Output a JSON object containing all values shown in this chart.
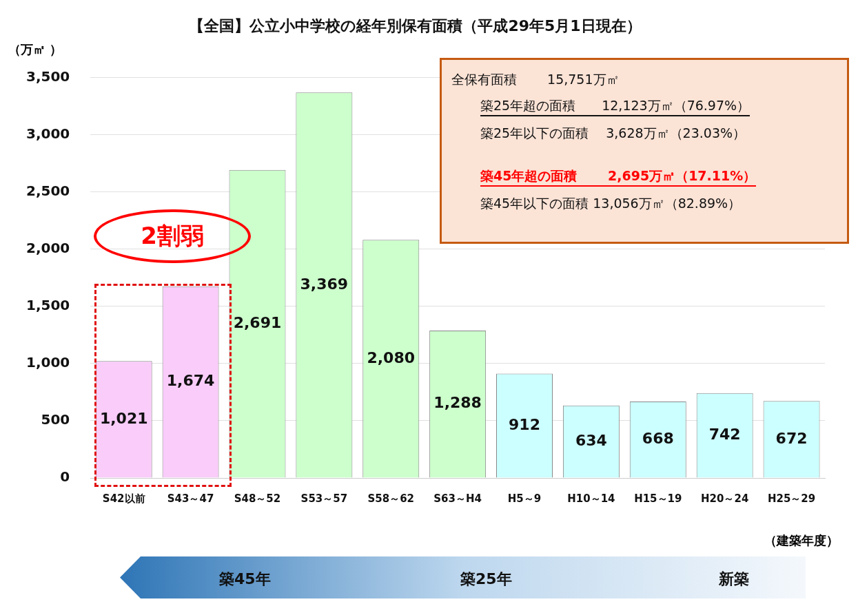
{
  "chart_data": {
    "type": "bar",
    "title": "【全国】公立小中学校の経年別保有面積（平成29年5月1日現在）",
    "ylabel": "（万㎡ ）",
    "xlabel": "（建築年度）",
    "categories": [
      "S42以前",
      "S43～47",
      "S48～52",
      "S53～57",
      "S58～62",
      "S63～H4",
      "H5～9",
      "H10～14",
      "H15～19",
      "H20～24",
      "H25～29"
    ],
    "values": [
      1021,
      1674,
      2691,
      3369,
      2080,
      1288,
      912,
      634,
      668,
      742,
      672
    ],
    "colors": [
      "#f9ccf9",
      "#f9ccf9",
      "#ccffcc",
      "#ccffcc",
      "#ccffcc",
      "#ccffcc",
      "#ccffff",
      "#ccffff",
      "#ccffff",
      "#ccffff",
      "#ccffff"
    ],
    "ylim": [
      0,
      3500
    ],
    "yticks": [
      0,
      500,
      {
        "value": 1000,
        "label": "1,000"
      },
      {
        "value": 1500,
        "label": "1,500"
      },
      {
        "value": 2000,
        "label": "2,000"
      },
      {
        "value": 2500,
        "label": "2,500"
      },
      {
        "value": 3000,
        "label": "3,000"
      },
      {
        "value": 3500,
        "label": "3,500"
      }
    ],
    "value_labels": [
      "1,021",
      "1,674",
      "2,691",
      "3,369",
      "2,080",
      "1,288",
      "912",
      "634",
      "668",
      "742",
      "672"
    ],
    "grid": "y",
    "legend": false,
    "annotations": [
      "全保有面積　　 15,751万㎡",
      "築25年超の面積　　12,123万㎡（76.97%）",
      "築25年以下の面積　 3,628万㎡（23.03%）",
      "築45年超の面積　　 2,695万㎡（17.11%）",
      "築45年以下の面積 13,056万㎡（82.89%）",
      "2割弱",
      "築45年",
      "築25年",
      "新築"
    ]
  }
}
